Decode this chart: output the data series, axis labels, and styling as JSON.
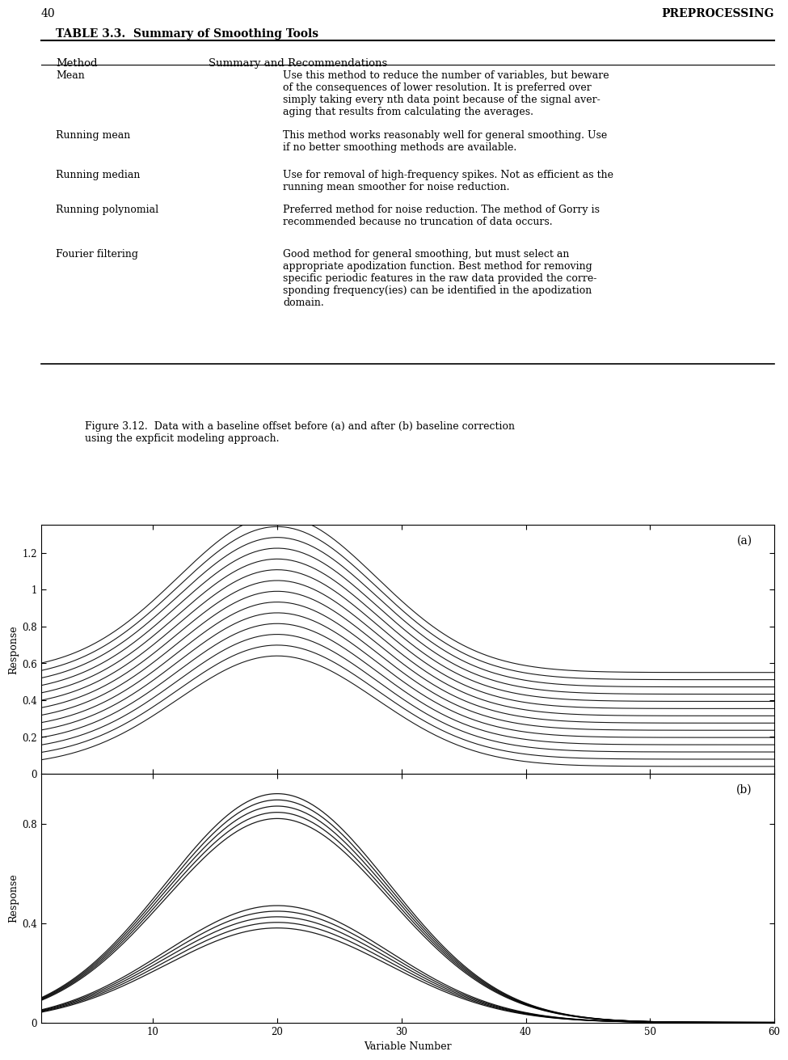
{
  "page_number": "40",
  "page_header": "PREPROCESSING",
  "table_title": "TABLE 3.3.  Summary of Smoothing Tools",
  "table_col1": "Method",
  "table_col2": "Summary and Recommendations",
  "xlabel": "Variable Number",
  "ylabel": "Response",
  "label_a": "(a)",
  "label_b": "(b)",
  "xmin": 1,
  "xmax": 60,
  "figure_caption": "Figure 3.12.  Data with a baseline offset before (a) and after (b) baseline correction\nusing the expficit modeling approach.",
  "n_curves_a": 14,
  "n_curves_b": 10,
  "background_color": "#ffffff",
  "line_color": "#000000"
}
